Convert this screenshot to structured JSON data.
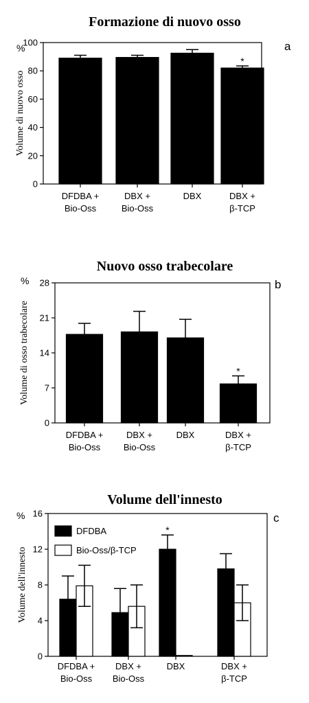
{
  "colors": {
    "dark": "#000000",
    "light": "#ffffff"
  },
  "chart_data": [
    {
      "type": "bar",
      "letter": "a",
      "title": "Formazione di nuovo osso",
      "unit": "%",
      "ylabel": "Volume di nuovo osso",
      "ylim": [
        0,
        100
      ],
      "yticks": [
        "0",
        "20",
        "40",
        "60",
        "80",
        "100"
      ],
      "categories": [
        [
          "DFDBA +",
          "Bio-Oss"
        ],
        [
          "DBX +",
          "Bio-Oss"
        ],
        [
          "DBX"
        ],
        [
          "DBX +",
          "β-TCP"
        ]
      ],
      "series": [
        {
          "values": [
            89,
            89.5,
            92.5,
            82
          ],
          "errors": [
            2,
            1.5,
            2.5,
            1.5
          ]
        }
      ],
      "significance": [
        "",
        "",
        "",
        "*"
      ]
    },
    {
      "type": "bar",
      "letter": "b",
      "title": "Nuovo osso trabecolare",
      "unit": "%",
      "ylabel": "Volume di osso trabecolare",
      "ylim": [
        0,
        28
      ],
      "yticks": [
        "0",
        "7",
        "14",
        "21",
        "28"
      ],
      "categories": [
        [
          "DFDBA +",
          "Bio-Oss"
        ],
        [
          "DBX +",
          "Bio-Oss"
        ],
        [
          "DBX"
        ],
        [
          "DBX +",
          "β-TCP"
        ]
      ],
      "series": [
        {
          "values": [
            17.7,
            18.2,
            17.0,
            7.8
          ],
          "errors": [
            2.2,
            4.1,
            3.7,
            1.6
          ]
        }
      ],
      "significance": [
        "",
        "",
        "",
        "*"
      ]
    },
    {
      "type": "bar",
      "letter": "c",
      "title": "Volume dell'innesto",
      "unit": "%",
      "ylabel": "Volume dell'innesto",
      "ylim": [
        0,
        16
      ],
      "yticks": [
        "0",
        "4",
        "8",
        "12",
        "16"
      ],
      "categories": [
        [
          "DFDBA +",
          "Bio-Oss"
        ],
        [
          "DBX +",
          "Bio-Oss"
        ],
        [
          "DBX"
        ],
        [
          "DBX +",
          "β-TCP"
        ]
      ],
      "series": [
        {
          "name": "DFDBA",
          "values": [
            6.4,
            4.9,
            12.0,
            9.8
          ],
          "errors": [
            2.6,
            2.7,
            1.6,
            1.7
          ]
        },
        {
          "name": "Bio-Oss/β-TCP",
          "values": [
            7.9,
            5.6,
            0.1,
            6.0
          ],
          "errors": [
            2.3,
            2.4,
            0,
            2.0
          ]
        }
      ],
      "significance": [
        "",
        "",
        "*",
        ""
      ],
      "legend": "top-left"
    }
  ]
}
